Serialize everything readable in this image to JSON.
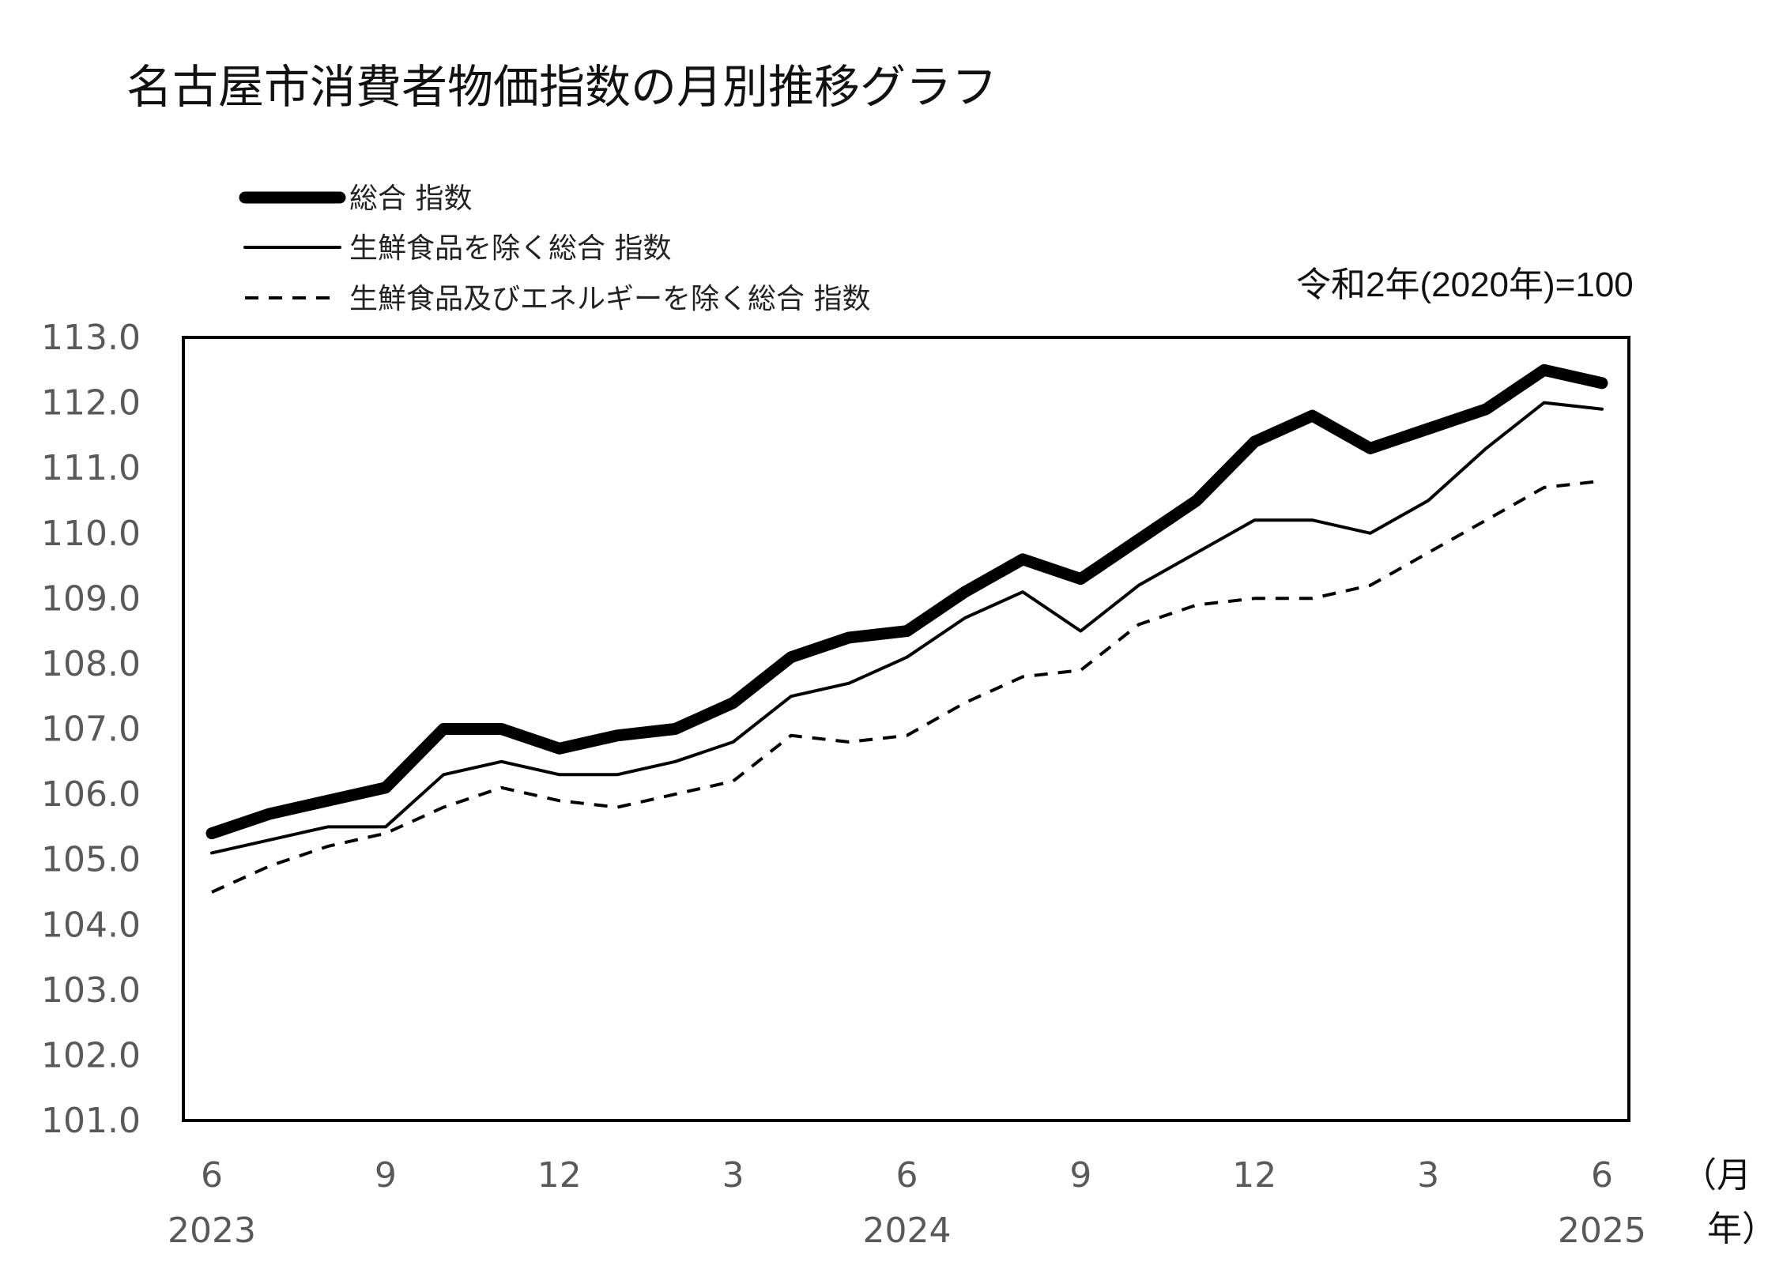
{
  "chart_data": {
    "type": "line",
    "title": "名古屋市消費者物価指数の月別推移グラフ",
    "base_note": "令和2年(2020年)=100",
    "unit_month": "（月",
    "unit_year": "年）",
    "ylim": [
      101.0,
      113.0
    ],
    "y_ticks": [
      "113.0",
      "112.0",
      "111.0",
      "110.0",
      "109.0",
      "108.0",
      "107.0",
      "106.0",
      "105.0",
      "104.0",
      "103.0",
      "102.0",
      "101.0"
    ],
    "x": [
      "2023-06",
      "2023-07",
      "2023-08",
      "2023-09",
      "2023-10",
      "2023-11",
      "2023-12",
      "2024-01",
      "2024-02",
      "2024-03",
      "2024-04",
      "2024-05",
      "2024-06",
      "2024-07",
      "2024-08",
      "2024-09",
      "2024-10",
      "2024-11",
      "2024-12",
      "2025-01",
      "2025-02",
      "2025-03",
      "2025-04",
      "2025-05",
      "2025-06"
    ],
    "x_month_labels": [
      {
        "label": "6",
        "index": 0
      },
      {
        "label": "9",
        "index": 3
      },
      {
        "label": "12",
        "index": 6
      },
      {
        "label": "3",
        "index": 9
      },
      {
        "label": "6",
        "index": 12
      },
      {
        "label": "9",
        "index": 15
      },
      {
        "label": "12",
        "index": 18
      },
      {
        "label": "3",
        "index": 21
      },
      {
        "label": "6",
        "index": 24
      }
    ],
    "x_year_labels": [
      {
        "label": "2023",
        "index": 0
      },
      {
        "label": "2024",
        "index": 12
      },
      {
        "label": "2025",
        "index": 24
      }
    ],
    "legend_placement": "top-left",
    "grid": false,
    "series": [
      {
        "name": "総合 指数",
        "style": "thick",
        "color": "#000000",
        "values": [
          105.4,
          105.7,
          105.9,
          106.1,
          107.0,
          107.0,
          106.7,
          106.9,
          107.0,
          107.4,
          108.1,
          108.4,
          108.5,
          109.1,
          109.6,
          109.3,
          109.9,
          110.5,
          111.4,
          111.8,
          111.3,
          111.6,
          111.9,
          112.5,
          112.3
        ]
      },
      {
        "name": "生鮮食品を除く総合 指数",
        "style": "thin",
        "color": "#000000",
        "values": [
          105.1,
          105.3,
          105.5,
          105.5,
          106.3,
          106.5,
          106.3,
          106.3,
          106.5,
          106.8,
          107.5,
          107.7,
          108.1,
          108.7,
          109.1,
          108.5,
          109.2,
          109.7,
          110.2,
          110.2,
          110.0,
          110.5,
          111.3,
          112.0,
          111.9
        ]
      },
      {
        "name": "生鮮食品及びエネルギーを除く総合 指数",
        "style": "dashed",
        "color": "#000000",
        "values": [
          104.5,
          104.9,
          105.2,
          105.4,
          105.8,
          106.1,
          105.9,
          105.8,
          106.0,
          106.2,
          106.9,
          106.8,
          106.9,
          107.4,
          107.8,
          107.9,
          108.6,
          108.9,
          109.0,
          109.0,
          109.2,
          109.7,
          110.2,
          110.7,
          110.8
        ]
      }
    ]
  }
}
